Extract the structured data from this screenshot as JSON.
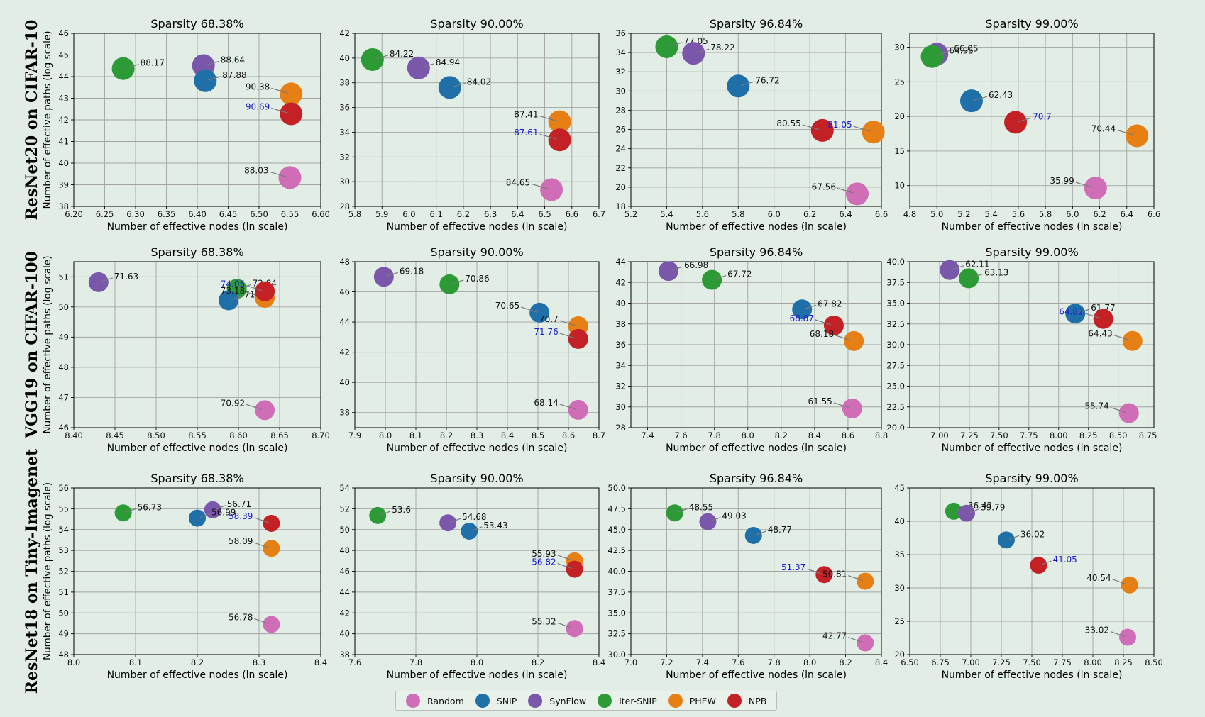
{
  "row_labels": [
    "ResNet20 on CIFAR-10",
    "VGG19 on CIFAR-100",
    "ResNet18 on Tiny-Imagenet"
  ],
  "colors": {
    "Random": "#cf6eb6",
    "SNIP": "#1f6fa8",
    "SynFlow": "#7b57ab",
    "Iter-SNIP": "#2c9a35",
    "PHEW": "#e67f14",
    "NPB": "#c32126"
  },
  "highlight_color": "#1a1acc",
  "legend": [
    "Random",
    "SNIP",
    "SynFlow",
    "Iter-SNIP",
    "PHEW",
    "NPB"
  ],
  "chart_data": [
    {
      "type": "scatter",
      "title": "Sparsity 68.38%",
      "xlabel": "Number of effective nodes (ln scale)",
      "ylabel": "Number of effective paths (log scale)",
      "xlim": [
        6.2,
        6.6
      ],
      "ylim": [
        38,
        46
      ],
      "xticks": [
        "6.20",
        "6.25",
        "6.30",
        "6.35",
        "6.40",
        "6.45",
        "6.50",
        "6.55",
        "6.60"
      ],
      "yticks": [
        "38",
        "39",
        "40",
        "41",
        "42",
        "43",
        "44",
        "45",
        "46"
      ],
      "points": [
        {
          "method": "Iter-SNIP",
          "x": 6.28,
          "y": 44.37,
          "label": "88.17"
        },
        {
          "method": "SynFlow",
          "x": 6.41,
          "y": 44.51,
          "label": "88.64"
        },
        {
          "method": "SNIP",
          "x": 6.413,
          "y": 43.81,
          "label": "87.88"
        },
        {
          "method": "PHEW",
          "x": 6.552,
          "y": 43.2,
          "label": "90.38"
        },
        {
          "method": "NPB",
          "x": 6.552,
          "y": 42.28,
          "label": "90.69",
          "highlight": true
        },
        {
          "method": "Random",
          "x": 6.55,
          "y": 39.33,
          "label": "88.03"
        }
      ]
    },
    {
      "type": "scatter",
      "title": "Sparsity 90.00%",
      "xlabel": "Number of effective nodes (ln scale)",
      "ylabel": "",
      "xlim": [
        5.8,
        6.7
      ],
      "ylim": [
        28,
        42
      ],
      "xticks": [
        "5.8",
        "5.9",
        "6.0",
        "6.1",
        "6.2",
        "6.3",
        "6.4",
        "6.5",
        "6.6",
        "6.7"
      ],
      "yticks": [
        "28",
        "30",
        "32",
        "34",
        "36",
        "38",
        "40",
        "42"
      ],
      "points": [
        {
          "method": "Iter-SNIP",
          "x": 5.865,
          "y": 39.88,
          "label": "84.22"
        },
        {
          "method": "SynFlow",
          "x": 6.035,
          "y": 39.2,
          "label": "84.94"
        },
        {
          "method": "SNIP",
          "x": 6.15,
          "y": 37.62,
          "label": "84.02"
        },
        {
          "method": "PHEW",
          "x": 6.555,
          "y": 34.85,
          "label": "87.41"
        },
        {
          "method": "NPB",
          "x": 6.555,
          "y": 33.38,
          "label": "87.61",
          "highlight": true
        },
        {
          "method": "Random",
          "x": 6.525,
          "y": 29.35,
          "label": "84.65"
        }
      ]
    },
    {
      "type": "scatter",
      "title": "Sparsity 96.84%",
      "xlabel": "Number of effective nodes (ln scale)",
      "ylabel": "",
      "xlim": [
        5.2,
        6.6
      ],
      "ylim": [
        18,
        36
      ],
      "xticks": [
        "5.2",
        "5.4",
        "5.6",
        "5.8",
        "6.0",
        "6.2",
        "6.4",
        "6.6"
      ],
      "yticks": [
        "18",
        "20",
        "22",
        "24",
        "26",
        "28",
        "30",
        "32",
        "34",
        "36"
      ],
      "points": [
        {
          "method": "Iter-SNIP",
          "x": 5.4,
          "y": 34.6,
          "label": "77.05"
        },
        {
          "method": "SynFlow",
          "x": 5.55,
          "y": 33.92,
          "label": "78.22"
        },
        {
          "method": "SNIP",
          "x": 5.8,
          "y": 30.52,
          "label": "76.72"
        },
        {
          "method": "NPB",
          "x": 6.27,
          "y": 25.9,
          "label": "80.55"
        },
        {
          "method": "PHEW",
          "x": 6.555,
          "y": 25.73,
          "label": "81.05",
          "highlight": true
        },
        {
          "method": "Random",
          "x": 6.465,
          "y": 19.3,
          "label": "67.56"
        }
      ]
    },
    {
      "type": "scatter",
      "title": "Sparsity 99.00%",
      "xlabel": "Number of effective nodes (ln scale)",
      "ylabel": "",
      "xlim": [
        4.8,
        6.6
      ],
      "ylim": [
        7,
        32
      ],
      "xticks": [
        "4.8",
        "5.0",
        "5.2",
        "5.4",
        "5.6",
        "5.8",
        "6.0",
        "6.2",
        "6.4",
        "6.6"
      ],
      "yticks": [
        "10",
        "15",
        "20",
        "25",
        "30"
      ],
      "points": [
        {
          "method": "SynFlow",
          "x": 5.0,
          "y": 29.0,
          "label": "66.05"
        },
        {
          "method": "Iter-SNIP",
          "x": 4.965,
          "y": 28.65,
          "label": "64.95"
        },
        {
          "method": "SNIP",
          "x": 5.255,
          "y": 22.25,
          "label": "62.43"
        },
        {
          "method": "NPB",
          "x": 5.58,
          "y": 19.15,
          "label": "70.7",
          "highlight": true
        },
        {
          "method": "PHEW",
          "x": 6.475,
          "y": 17.2,
          "label": "70.44"
        },
        {
          "method": "Random",
          "x": 6.17,
          "y": 9.65,
          "label": "35.99"
        }
      ]
    },
    {
      "type": "scatter",
      "title": "Sparsity 68.38%",
      "xlabel": "Number of effective nodes (ln scale)",
      "ylabel": "Number of effective paths (log scale)",
      "xlim": [
        8.4,
        8.7
      ],
      "ylim": [
        46,
        51.5
      ],
      "xticks": [
        "8.40",
        "8.45",
        "8.50",
        "8.55",
        "8.60",
        "8.65",
        "8.70"
      ],
      "yticks": [
        "46",
        "47",
        "48",
        "49",
        "50",
        "51"
      ],
      "points": [
        {
          "method": "SynFlow",
          "x": 8.43,
          "y": 50.82,
          "label": "71.63"
        },
        {
          "method": "Iter-SNIP",
          "x": 8.598,
          "y": 50.6,
          "label": "72.84"
        },
        {
          "method": "SNIP",
          "x": 8.588,
          "y": 50.22,
          "label": "71.31"
        },
        {
          "method": "PHEW",
          "x": 8.632,
          "y": 50.3,
          "label": "73.18"
        },
        {
          "method": "NPB",
          "x": 8.632,
          "y": 50.52,
          "label": "74.05",
          "highlight": true
        },
        {
          "method": "Random",
          "x": 8.632,
          "y": 46.58,
          "label": "70.92"
        }
      ]
    },
    {
      "type": "scatter",
      "title": "Sparsity 90.00%",
      "xlabel": "Number of effective nodes (ln scale)",
      "ylabel": "",
      "xlim": [
        7.9,
        8.7
      ],
      "ylim": [
        37,
        48
      ],
      "xticks": [
        "7.9",
        "8.0",
        "8.1",
        "8.2",
        "8.3",
        "8.4",
        "8.5",
        "8.6",
        "8.7"
      ],
      "yticks": [
        "38",
        "40",
        "42",
        "44",
        "46",
        "48"
      ],
      "points": [
        {
          "method": "SynFlow",
          "x": 7.995,
          "y": 47.0,
          "label": "69.18"
        },
        {
          "method": "Iter-SNIP",
          "x": 8.21,
          "y": 46.5,
          "label": "70.86"
        },
        {
          "method": "SNIP",
          "x": 8.505,
          "y": 44.62,
          "label": "70.65"
        },
        {
          "method": "PHEW",
          "x": 8.632,
          "y": 43.72,
          "label": "70.7"
        },
        {
          "method": "NPB",
          "x": 8.632,
          "y": 42.88,
          "label": "71.76",
          "highlight": true
        },
        {
          "method": "Random",
          "x": 8.632,
          "y": 38.18,
          "label": "68.14"
        }
      ]
    },
    {
      "type": "scatter",
      "title": "Sparsity 96.84%",
      "xlabel": "Number of effective nodes (ln scale)",
      "ylabel": "",
      "xlim": [
        7.3,
        8.8
      ],
      "ylim": [
        28,
        44
      ],
      "xticks": [
        "7.4",
        "7.6",
        "7.8",
        "8.0",
        "8.2",
        "8.4",
        "8.6",
        "8.8"
      ],
      "yticks": [
        "28",
        "30",
        "32",
        "34",
        "36",
        "38",
        "40",
        "42",
        "44"
      ],
      "points": [
        {
          "method": "SynFlow",
          "x": 7.525,
          "y": 43.1,
          "label": "66.98"
        },
        {
          "method": "Iter-SNIP",
          "x": 7.785,
          "y": 42.25,
          "label": "67.72"
        },
        {
          "method": "SNIP",
          "x": 8.325,
          "y": 39.4,
          "label": "67.82"
        },
        {
          "method": "NPB",
          "x": 8.515,
          "y": 37.85,
          "label": "68.87",
          "highlight": true
        },
        {
          "method": "PHEW",
          "x": 8.635,
          "y": 36.35,
          "label": "68.18"
        },
        {
          "method": "Random",
          "x": 8.625,
          "y": 29.85,
          "label": "61.55"
        }
      ]
    },
    {
      "type": "scatter",
      "title": "Sparsity 99.00%",
      "xlabel": "Number of effective nodes (ln scale)",
      "ylabel": "",
      "xlim": [
        6.75,
        8.8
      ],
      "ylim": [
        20,
        40
      ],
      "xticks": [
        "7.00",
        "7.25",
        "7.50",
        "7.75",
        "8.00",
        "8.25",
        "8.50",
        "8.75"
      ],
      "yticks": [
        "20.0",
        "22.5",
        "25.0",
        "27.5",
        "30.0",
        "32.5",
        "35.0",
        "37.5",
        "40.0"
      ],
      "points": [
        {
          "method": "SynFlow",
          "x": 7.085,
          "y": 39.0,
          "label": "62.11"
        },
        {
          "method": "Iter-SNIP",
          "x": 7.245,
          "y": 38.0,
          "label": "63.13"
        },
        {
          "method": "SNIP",
          "x": 8.14,
          "y": 33.75,
          "label": "61.77"
        },
        {
          "method": "NPB",
          "x": 8.375,
          "y": 33.1,
          "label": "64.82",
          "highlight": true
        },
        {
          "method": "PHEW",
          "x": 8.62,
          "y": 30.45,
          "label": "64.43"
        },
        {
          "method": "Random",
          "x": 8.59,
          "y": 21.75,
          "label": "55.74"
        }
      ]
    },
    {
      "type": "scatter",
      "title": "Sparsity 68.38%",
      "xlabel": "Number of effective nodes (ln scale)",
      "ylabel": "Number of effective paths (log scale)",
      "xlim": [
        8.0,
        8.4
      ],
      "ylim": [
        48,
        56
      ],
      "xticks": [
        "8.0",
        "8.1",
        "8.2",
        "8.3",
        "8.4"
      ],
      "yticks": [
        "48",
        "49",
        "50",
        "51",
        "52",
        "53",
        "54",
        "55",
        "56"
      ],
      "points": [
        {
          "method": "Iter-SNIP",
          "x": 8.08,
          "y": 54.8,
          "label": "56.73"
        },
        {
          "method": "SynFlow",
          "x": 8.225,
          "y": 54.95,
          "label": "56.71"
        },
        {
          "method": "SNIP",
          "x": 8.2,
          "y": 54.55,
          "label": "56.99"
        },
        {
          "method": "NPB",
          "x": 8.32,
          "y": 54.3,
          "label": "58.39",
          "highlight": true
        },
        {
          "method": "PHEW",
          "x": 8.32,
          "y": 53.1,
          "label": "58.09"
        },
        {
          "method": "Random",
          "x": 8.32,
          "y": 49.45,
          "label": "56.78"
        }
      ]
    },
    {
      "type": "scatter",
      "title": "Sparsity 90.00%",
      "xlabel": "Number of effective nodes (ln scale)",
      "ylabel": "",
      "xlim": [
        7.6,
        8.4
      ],
      "ylim": [
        38,
        54
      ],
      "xticks": [
        "7.6",
        "7.8",
        "8.0",
        "8.2",
        "8.4"
      ],
      "yticks": [
        "38",
        "40",
        "42",
        "44",
        "46",
        "48",
        "50",
        "52",
        "54"
      ],
      "points": [
        {
          "method": "Iter-SNIP",
          "x": 7.675,
          "y": 51.35,
          "label": "53.6"
        },
        {
          "method": "SynFlow",
          "x": 7.905,
          "y": 50.65,
          "label": "54.68"
        },
        {
          "method": "SNIP",
          "x": 7.975,
          "y": 49.85,
          "label": "53.43"
        },
        {
          "method": "PHEW",
          "x": 8.32,
          "y": 47.0,
          "label": "55.93"
        },
        {
          "method": "NPB",
          "x": 8.32,
          "y": 46.2,
          "label": "56.82",
          "highlight": true
        },
        {
          "method": "Random",
          "x": 8.32,
          "y": 40.5,
          "label": "55.32"
        }
      ]
    },
    {
      "type": "scatter",
      "title": "Sparsity 96.84%",
      "xlabel": "Number of effective nodes (ln scale)",
      "ylabel": "",
      "xlim": [
        7.0,
        8.4
      ],
      "ylim": [
        30,
        50
      ],
      "xticks": [
        "7.0",
        "7.2",
        "7.4",
        "7.6",
        "7.8",
        "8.0",
        "8.2",
        "8.4"
      ],
      "yticks": [
        "30.0",
        "32.5",
        "35.0",
        "37.5",
        "40.0",
        "42.5",
        "45.0",
        "47.5",
        "50.0"
      ],
      "points": [
        {
          "method": "Iter-SNIP",
          "x": 7.245,
          "y": 47.0,
          "label": "48.55"
        },
        {
          "method": "SynFlow",
          "x": 7.43,
          "y": 45.95,
          "label": "49.03"
        },
        {
          "method": "SNIP",
          "x": 7.685,
          "y": 44.3,
          "label": "48.77"
        },
        {
          "method": "NPB",
          "x": 8.08,
          "y": 39.6,
          "label": "51.37",
          "highlight": true
        },
        {
          "method": "PHEW",
          "x": 8.31,
          "y": 38.8,
          "label": "50.81"
        },
        {
          "method": "Random",
          "x": 8.31,
          "y": 31.4,
          "label": "42.77"
        }
      ]
    },
    {
      "type": "scatter",
      "title": "Sparsity 99.00%",
      "xlabel": "Number of effective nodes (ln scale)",
      "ylabel": "",
      "xlim": [
        6.5,
        8.5
      ],
      "ylim": [
        20,
        45
      ],
      "xticks": [
        "6.50",
        "6.75",
        "7.00",
        "7.25",
        "7.50",
        "7.75",
        "8.00",
        "8.25",
        "8.50"
      ],
      "yticks": [
        "20",
        "25",
        "30",
        "35",
        "40",
        "45"
      ],
      "points": [
        {
          "method": "Iter-SNIP",
          "x": 6.86,
          "y": 41.5,
          "label": "36.42"
        },
        {
          "method": "SynFlow",
          "x": 6.965,
          "y": 41.2,
          "label": "39.79"
        },
        {
          "method": "SNIP",
          "x": 7.29,
          "y": 37.2,
          "label": "36.02"
        },
        {
          "method": "NPB",
          "x": 7.555,
          "y": 33.4,
          "label": "41.05",
          "highlight": true
        },
        {
          "method": "PHEW",
          "x": 8.3,
          "y": 30.45,
          "label": "40.54"
        },
        {
          "method": "Random",
          "x": 8.285,
          "y": 22.6,
          "label": "33.02"
        }
      ]
    }
  ]
}
